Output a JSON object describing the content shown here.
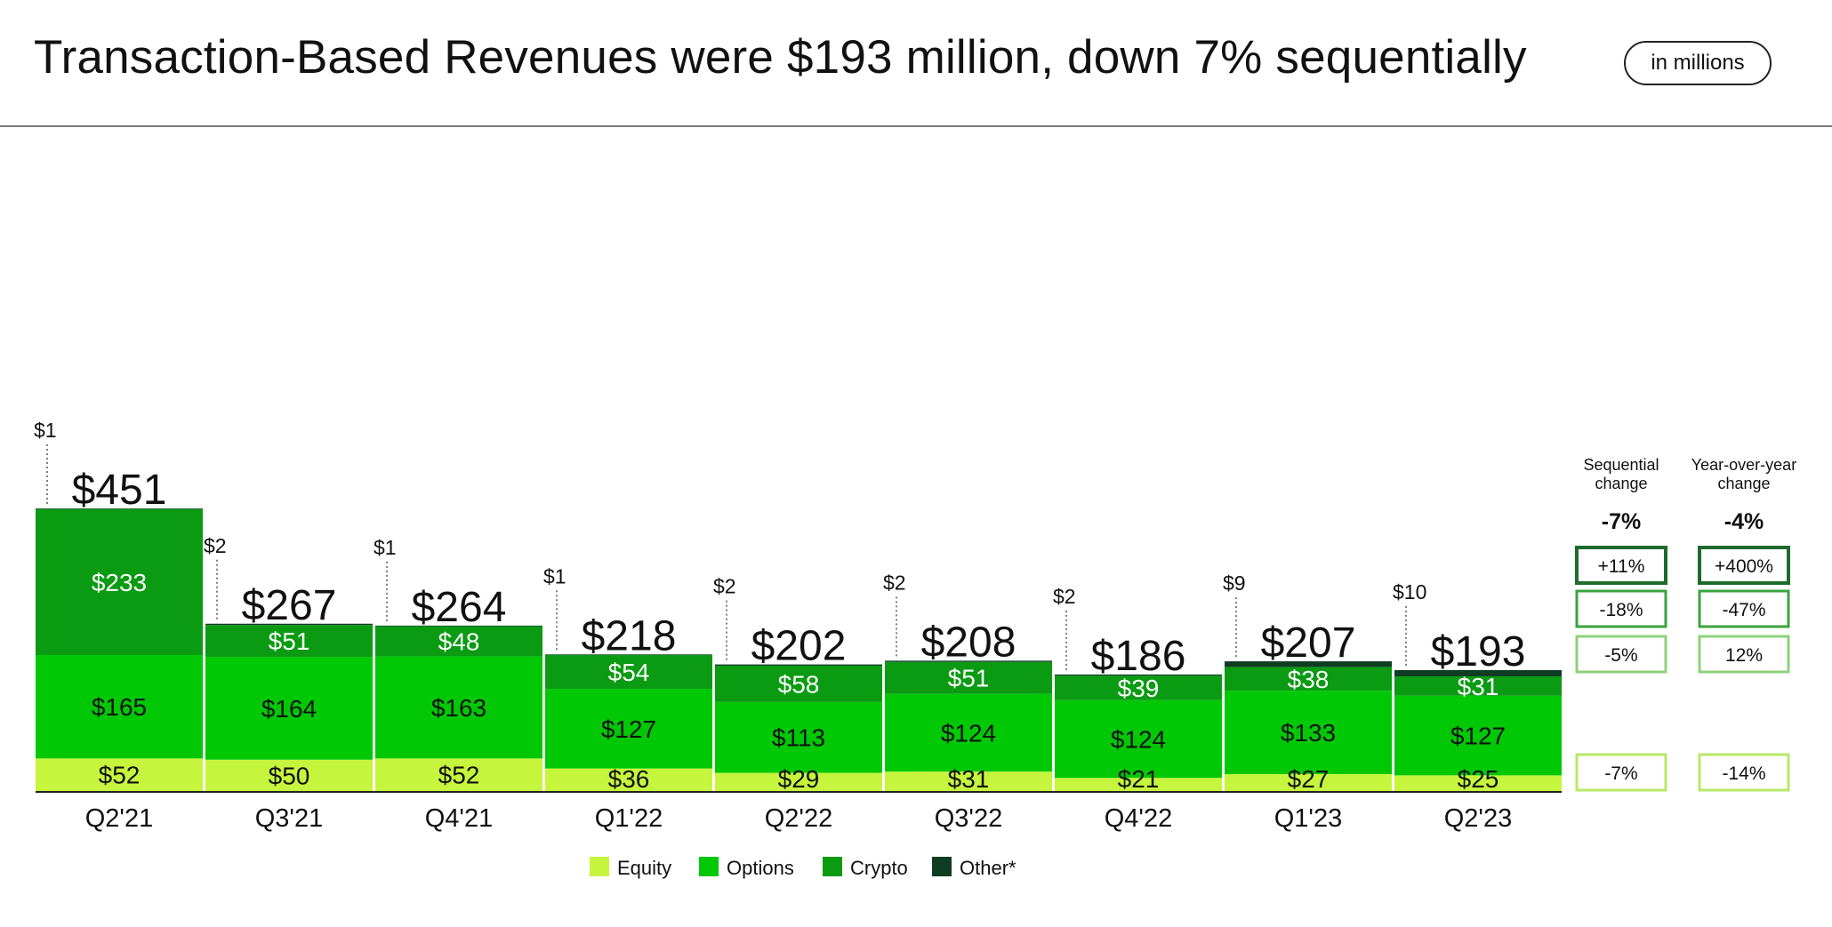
{
  "title": "Transaction-Based Revenues were $193 million, down 7% sequentially",
  "units_label": "in millions",
  "colors": {
    "equity": "#c6f53d",
    "options": "#00c805",
    "crypto": "#0a9b12",
    "other": "#0f3d23",
    "change_box_1": "#1e6b2c",
    "change_box_2": "#3aa33f",
    "change_box_3": "#8fd07a",
    "change_box_4": "#b8e86a"
  },
  "chart_data": {
    "type": "bar",
    "stacked": true,
    "categories": [
      "Q2'21",
      "Q3'21",
      "Q4'21",
      "Q1'22",
      "Q2'22",
      "Q3'22",
      "Q4'22",
      "Q1'23",
      "Q2'23"
    ],
    "series": [
      {
        "name": "Equity",
        "values": [
          52,
          50,
          52,
          36,
          29,
          31,
          21,
          27,
          25
        ],
        "labels": [
          "$52",
          "$50",
          "$52",
          "$36",
          "$29",
          "$31",
          "$21",
          "$27",
          "$25"
        ]
      },
      {
        "name": "Options",
        "values": [
          165,
          164,
          163,
          127,
          113,
          124,
          124,
          133,
          127
        ],
        "labels": [
          "$165",
          "$164",
          "$163",
          "$127",
          "$113",
          "$124",
          "$124",
          "$133",
          "$127"
        ]
      },
      {
        "name": "Crypto",
        "values": [
          233,
          51,
          48,
          54,
          58,
          51,
          39,
          38,
          31
        ],
        "labels": [
          "$233",
          "$51",
          "$48",
          "$54",
          "$58",
          "$51",
          "$39",
          "$38",
          "$31"
        ]
      },
      {
        "name": "Other*",
        "values": [
          1,
          2,
          1,
          1,
          2,
          2,
          2,
          9,
          10
        ],
        "labels": [
          "$1",
          "$2",
          "$1",
          "$1",
          "$2",
          "$2",
          "$2",
          "$9",
          "$10"
        ]
      }
    ],
    "totals": [
      451,
      267,
      264,
      218,
      202,
      208,
      186,
      207,
      193
    ],
    "total_labels": [
      "$451",
      "$267",
      "$264",
      "$218",
      "$202",
      "$208",
      "$186",
      "$207",
      "$193"
    ],
    "legend_position": "bottom",
    "grid": false
  },
  "changes": {
    "sequential": {
      "header": "Sequential change",
      "total": "-7%",
      "other": "+11%",
      "crypto": "-18%",
      "options": "-5%",
      "equity": "-7%"
    },
    "yoy": {
      "header": "Year-over-year change",
      "total": "-4%",
      "other": "+400%",
      "crypto": "-47%",
      "options": "12%",
      "equity": "-14%"
    }
  }
}
